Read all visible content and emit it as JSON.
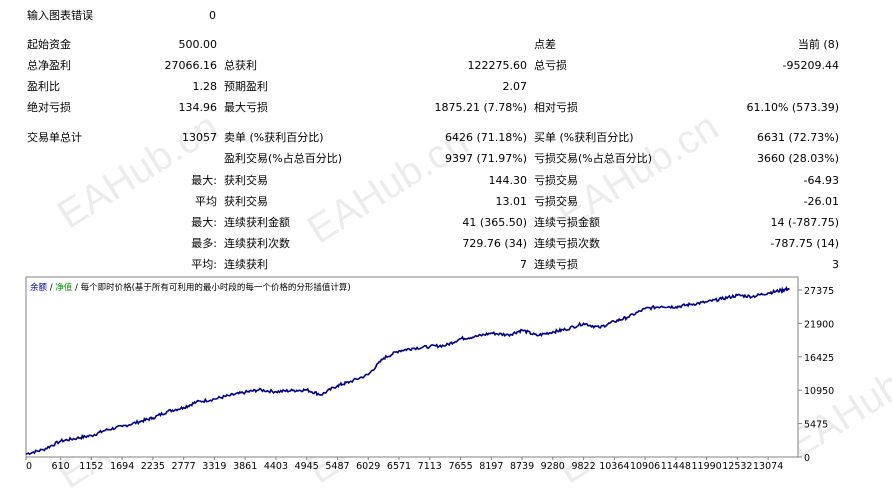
{
  "report": {
    "input_errors": {
      "label": "输入图表错误",
      "value": "0"
    },
    "rows": [
      {
        "c1l": "起始资金",
        "c1v": "500.00",
        "c2l": "",
        "c2v": "",
        "c3l": "点差",
        "c3v": "当前 (8)"
      },
      {
        "c1l": "总净盈利",
        "c1v": "27066.16",
        "c2l": "总获利",
        "c2v": "122275.60",
        "c3l": "总亏损",
        "c3v": "-95209.44"
      },
      {
        "c1l": "盈利比",
        "c1v": "1.28",
        "c2l": "预期盈利",
        "c2v": "2.07",
        "c3l": "",
        "c3v": ""
      },
      {
        "c1l": "绝对亏损",
        "c1v": "134.96",
        "c2l": "最大亏损",
        "c2v": "1875.21 (7.78%)",
        "c3l": "相对亏损",
        "c3v": "61.10% (573.39)"
      },
      {
        "c1l": "交易单总计",
        "c1v": "13057",
        "c2l": "卖单 (%获利百分比)",
        "c2v": "6426 (71.18%)",
        "c3l": "买单 (%获利百分比)",
        "c3v": "6631 (72.73%)"
      },
      {
        "c1l": "",
        "c1v": "",
        "c2l": "盈利交易(%占总百分比)",
        "c2v": "9397 (71.97%)",
        "c3l": "亏损交易(%占总百分比)",
        "c3v": "3660 (28.03%)"
      },
      {
        "c1l": "",
        "c1v": "最大:",
        "c2l": "获利交易",
        "c2v": "144.30",
        "c3l": "亏损交易",
        "c3v": "-64.93"
      },
      {
        "c1l": "",
        "c1v": "平均",
        "c2l": "获利交易",
        "c2v": "13.01",
        "c3l": "亏损交易",
        "c3v": "-26.01"
      },
      {
        "c1l": "",
        "c1v": "最大:",
        "c2l": "连续获利金额",
        "c2v": "41 (365.50)",
        "c3l": "连续亏损金额",
        "c3v": "14 (-787.75)"
      },
      {
        "c1l": "",
        "c1v": "最多:",
        "c2l": "连续获利次数",
        "c2v": "729.76 (34)",
        "c3l": "连续亏损次数",
        "c3v": "-787.75 (14)"
      },
      {
        "c1l": "",
        "c1v": "平均:",
        "c2l": "连续获利",
        "c2v": "7",
        "c3l": "连续亏损",
        "c3v": "3"
      }
    ]
  },
  "watermark": "EAHub.cn",
  "chart_data": {
    "type": "line",
    "legend": {
      "balance": "余额",
      "sep1": " / ",
      "equity": "净值",
      "sep2": " / ",
      "mode": "每个即时价格(基于所有可利用的最小时段的每一个价格的分形插值计算)"
    },
    "x_ticks": [
      "0",
      "610",
      "1152",
      "1694",
      "2235",
      "2777",
      "3319",
      "3861",
      "4403",
      "4945",
      "5487",
      "6029",
      "6571",
      "7113",
      "7655",
      "8197",
      "8739",
      "9280",
      "9822",
      "10364",
      "10906",
      "11448",
      "11990",
      "12532",
      "13074"
    ],
    "y_ticks": [
      "0",
      "5475",
      "10950",
      "16425",
      "21900",
      "27375"
    ],
    "xlim": [
      0,
      13600
    ],
    "ylim": [
      0,
      29500
    ],
    "grid": false,
    "series_color": "#00008b",
    "series": [
      {
        "x": [
          0,
          300,
          610,
          900,
          1152,
          1400,
          1694,
          2000,
          2235,
          2500,
          2777,
          3000,
          3319,
          3600,
          3861,
          4100,
          4403,
          4700,
          4945,
          5200,
          5487,
          5700,
          6029,
          6300,
          6571,
          6800,
          7113,
          7400,
          7655,
          7900,
          8197,
          8500,
          8739,
          9000,
          9280,
          9500,
          9822,
          10100,
          10364,
          10600,
          10906,
          11200,
          11448,
          11700,
          11990,
          12250,
          12532,
          12800,
          13074,
          13300,
          13450
        ],
        "y": [
          500,
          1200,
          2600,
          3100,
          3500,
          4400,
          5000,
          5800,
          6400,
          7500,
          8100,
          9000,
          9500,
          10100,
          10600,
          11000,
          10700,
          10900,
          11000,
          10200,
          11700,
          12300,
          13500,
          16200,
          17400,
          17800,
          18100,
          18300,
          19400,
          19700,
          20300,
          20000,
          20800,
          19900,
          20500,
          20900,
          21900,
          21200,
          22200,
          22900,
          24300,
          24700,
          24600,
          25000,
          25400,
          25900,
          26500,
          26300,
          26900,
          27300,
          27600
        ]
      }
    ]
  }
}
